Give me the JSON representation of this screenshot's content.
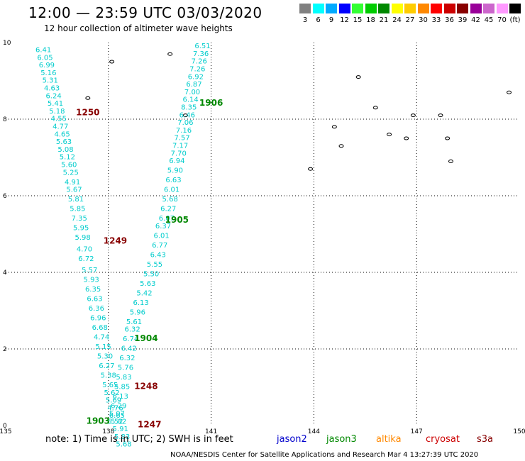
{
  "title": "12:00 — 23:59 UTC 03/03/2020",
  "subtitle": "12 hour collection of altimeter wave heights",
  "legend": {
    "unit": "(ft)",
    "bins": [
      {
        "label": "3",
        "color": "#808080"
      },
      {
        "label": "6",
        "color": "#00ffff"
      },
      {
        "label": "9",
        "color": "#00aaff"
      },
      {
        "label": "12",
        "color": "#0000ff"
      },
      {
        "label": "15",
        "color": "#33ff33"
      },
      {
        "label": "18",
        "color": "#00cc00"
      },
      {
        "label": "21",
        "color": "#008800"
      },
      {
        "label": "24",
        "color": "#ffff00"
      },
      {
        "label": "27",
        "color": "#ffcc00"
      },
      {
        "label": "30",
        "color": "#ff8800"
      },
      {
        "label": "33",
        "color": "#ff0000"
      },
      {
        "label": "36",
        "color": "#cc0000"
      },
      {
        "label": "39",
        "color": "#880000"
      },
      {
        "label": "42",
        "color": "#990099"
      },
      {
        "label": "45",
        "color": "#cc66cc"
      },
      {
        "label": "70",
        "color": "#ff99ff"
      },
      {
        "label": "(ft)",
        "color": "#000000"
      }
    ]
  },
  "map": {
    "lat_range": [
      0,
      10
    ],
    "lon_range": [
      135,
      150
    ],
    "lat_ticks": [
      "0",
      "2",
      "4",
      "6",
      "8",
      "10"
    ],
    "lon_ticks": [
      "135",
      "138",
      "141",
      "144",
      "147",
      "150"
    ],
    "track_color": "#00cccc",
    "track_label_color_cryosat": "#880000",
    "track_label_color_jason3": "#008800",
    "tracks": [
      {
        "name": "1250",
        "color": "#880000",
        "label_pos": [
          137.4,
          8.1
        ],
        "points": [
          {
            "lon": 136.1,
            "lat": 9.75,
            "v": "6.41"
          },
          {
            "lon": 136.15,
            "lat": 9.55,
            "v": "6.05"
          },
          {
            "lon": 136.2,
            "lat": 9.35,
            "v": "6.99"
          },
          {
            "lon": 136.25,
            "lat": 9.15,
            "v": "5.16"
          },
          {
            "lon": 136.3,
            "lat": 8.95,
            "v": "5.31"
          },
          {
            "lon": 136.35,
            "lat": 8.75,
            "v": "4.63"
          },
          {
            "lon": 136.4,
            "lat": 8.55,
            "v": "6.24"
          },
          {
            "lon": 136.45,
            "lat": 8.35,
            "v": "5.41"
          },
          {
            "lon": 136.5,
            "lat": 8.15,
            "v": "5.18"
          },
          {
            "lon": 136.55,
            "lat": 7.95,
            "v": "4.55"
          },
          {
            "lon": 136.6,
            "lat": 7.75,
            "v": "4.77"
          },
          {
            "lon": 136.65,
            "lat": 7.55,
            "v": "4.65"
          },
          {
            "lon": 136.7,
            "lat": 7.35,
            "v": "5.63"
          },
          {
            "lon": 136.75,
            "lat": 7.15,
            "v": "5.08"
          },
          {
            "lon": 136.8,
            "lat": 6.95,
            "v": "5.12"
          },
          {
            "lon": 136.85,
            "lat": 6.75,
            "v": "5.60"
          },
          {
            "lon": 136.9,
            "lat": 6.55,
            "v": "5.25"
          },
          {
            "lon": 136.95,
            "lat": 6.3,
            "v": "4.91"
          },
          {
            "lon": 137.0,
            "lat": 6.1,
            "v": "5.67"
          },
          {
            "lon": 137.05,
            "lat": 5.85,
            "v": "5.81"
          },
          {
            "lon": 137.1,
            "lat": 5.6,
            "v": "5.85"
          },
          {
            "lon": 137.15,
            "lat": 5.35,
            "v": "7.35"
          },
          {
            "lon": 137.2,
            "lat": 5.1,
            "v": "5.95"
          },
          {
            "lon": 137.25,
            "lat": 4.85,
            "v": "5.98"
          },
          {
            "lon": 137.3,
            "lat": 4.55,
            "v": "4.70"
          },
          {
            "lon": 137.35,
            "lat": 4.3,
            "v": "6.72"
          }
        ]
      },
      {
        "name": "1249",
        "color": "#880000",
        "label_pos": [
          138.2,
          4.75
        ],
        "points": [
          {
            "lon": 137.45,
            "lat": 4.0,
            "v": "5.57"
          },
          {
            "lon": 137.5,
            "lat": 3.75,
            "v": "5.93"
          },
          {
            "lon": 137.55,
            "lat": 3.5,
            "v": "6.35"
          },
          {
            "lon": 137.6,
            "lat": 3.25,
            "v": "6.63"
          },
          {
            "lon": 137.65,
            "lat": 3.0,
            "v": "6.36"
          },
          {
            "lon": 137.7,
            "lat": 2.75,
            "v": "6.96"
          },
          {
            "lon": 137.75,
            "lat": 2.5,
            "v": "6.68"
          },
          {
            "lon": 137.8,
            "lat": 2.25,
            "v": "4.74"
          },
          {
            "lon": 137.85,
            "lat": 2.0,
            "v": "5.15"
          },
          {
            "lon": 137.9,
            "lat": 1.75,
            "v": "5.30"
          },
          {
            "lon": 137.95,
            "lat": 1.5,
            "v": "6.27"
          },
          {
            "lon": 138.0,
            "lat": 1.25,
            "v": "5.38"
          }
        ]
      },
      {
        "name": "1248",
        "color": "#880000",
        "label_pos": [
          139.1,
          0.95
        ],
        "points": [
          {
            "lon": 138.05,
            "lat": 1.0,
            "v": "5.65"
          },
          {
            "lon": 138.1,
            "lat": 0.8,
            "v": "5.62"
          },
          {
            "lon": 138.15,
            "lat": 0.6,
            "v": "5.69"
          },
          {
            "lon": 138.2,
            "lat": 0.4,
            "v": "4.76"
          },
          {
            "lon": 138.25,
            "lat": 0.2,
            "v": "6.65"
          },
          {
            "lon": 138.3,
            "lat": 0.05,
            "v": "5.82"
          }
        ]
      },
      {
        "name": "1906",
        "color": "#008800",
        "label_pos": [
          141.0,
          8.35
        ],
        "points": [
          {
            "lon": 140.75,
            "lat": 9.85,
            "v": "6.51"
          },
          {
            "lon": 140.7,
            "lat": 9.65,
            "v": "7.36"
          },
          {
            "lon": 140.65,
            "lat": 9.45,
            "v": "7.26"
          },
          {
            "lon": 140.6,
            "lat": 9.25,
            "v": "7.26"
          },
          {
            "lon": 140.55,
            "lat": 9.05,
            "v": "6.92"
          },
          {
            "lon": 140.5,
            "lat": 8.85,
            "v": "6.87"
          },
          {
            "lon": 140.45,
            "lat": 8.65,
            "v": "7.00"
          },
          {
            "lon": 140.4,
            "lat": 8.45,
            "v": "6.14"
          },
          {
            "lon": 140.35,
            "lat": 8.25,
            "v": "8.35"
          },
          {
            "lon": 140.3,
            "lat": 8.05,
            "v": "6.46"
          },
          {
            "lon": 140.25,
            "lat": 7.85,
            "v": "7.06"
          },
          {
            "lon": 140.2,
            "lat": 7.65,
            "v": "7.16"
          },
          {
            "lon": 140.15,
            "lat": 7.45,
            "v": "7.57"
          },
          {
            "lon": 140.1,
            "lat": 7.25,
            "v": "7.17"
          },
          {
            "lon": 140.05,
            "lat": 7.05,
            "v": "7.70"
          },
          {
            "lon": 140.0,
            "lat": 6.85,
            "v": "6.94"
          },
          {
            "lon": 139.95,
            "lat": 6.6,
            "v": "5.90"
          },
          {
            "lon": 139.9,
            "lat": 6.35,
            "v": "6.63"
          },
          {
            "lon": 139.85,
            "lat": 6.1,
            "v": "6.01"
          },
          {
            "lon": 139.8,
            "lat": 5.85,
            "v": "5.68"
          },
          {
            "lon": 139.75,
            "lat": 5.6,
            "v": "6.27"
          },
          {
            "lon": 139.7,
            "lat": 5.35,
            "v": "6.07"
          }
        ]
      },
      {
        "name": "1905",
        "color": "#008800",
        "label_pos": [
          140.0,
          5.3
        ],
        "points": [
          {
            "lon": 139.6,
            "lat": 5.15,
            "v": "6.37"
          },
          {
            "lon": 139.55,
            "lat": 4.9,
            "v": "6.01"
          },
          {
            "lon": 139.5,
            "lat": 4.65,
            "v": "6.77"
          },
          {
            "lon": 139.45,
            "lat": 4.4,
            "v": "6.43"
          },
          {
            "lon": 139.35,
            "lat": 4.15,
            "v": "5.55"
          },
          {
            "lon": 139.25,
            "lat": 3.9,
            "v": "5.50"
          },
          {
            "lon": 139.15,
            "lat": 3.65,
            "v": "5.63"
          },
          {
            "lon": 139.05,
            "lat": 3.4,
            "v": "5.42"
          },
          {
            "lon": 138.95,
            "lat": 3.15,
            "v": "6.13"
          },
          {
            "lon": 138.85,
            "lat": 2.9,
            "v": "5.96"
          },
          {
            "lon": 138.75,
            "lat": 2.65,
            "v": "5.61"
          }
        ]
      },
      {
        "name": "1904",
        "color": "#008800",
        "label_pos": [
          139.1,
          2.2
        ],
        "points": [
          {
            "lon": 138.7,
            "lat": 2.45,
            "v": "6.32"
          },
          {
            "lon": 138.65,
            "lat": 2.2,
            "v": "6.74"
          },
          {
            "lon": 138.6,
            "lat": 1.95,
            "v": "6.42"
          },
          {
            "lon": 138.55,
            "lat": 1.7,
            "v": "6.32"
          },
          {
            "lon": 138.5,
            "lat": 1.45,
            "v": "5.76"
          },
          {
            "lon": 138.45,
            "lat": 1.2,
            "v": "5.83"
          },
          {
            "lon": 138.4,
            "lat": 0.95,
            "v": "5.85"
          },
          {
            "lon": 138.35,
            "lat": 0.7,
            "v": "6.13"
          },
          {
            "lon": 138.3,
            "lat": 0.45,
            "v": "6.29"
          }
        ]
      },
      {
        "name": "1903",
        "color": "#008800",
        "label_pos": [
          137.7,
          0.05
        ],
        "points": [
          {
            "lon": 138.25,
            "lat": 0.25,
            "v": "5.07"
          },
          {
            "lon": 138.2,
            "lat": 0.05,
            "v": "5.52"
          }
        ]
      },
      {
        "name": "1247",
        "color": "#880000",
        "label_pos": [
          139.2,
          -0.05
        ],
        "points": [
          {
            "lon": 138.35,
            "lat": -0.15,
            "v": "5.91"
          },
          {
            "lon": 138.4,
            "lat": -0.35,
            "v": "5.83"
          },
          {
            "lon": 138.45,
            "lat": -0.55,
            "v": "5.68"
          }
        ]
      }
    ]
  },
  "footnote": {
    "note": "note:  1) Time is in UTC;  2) SWH is in feet",
    "sat1": "jason2",
    "sat2": "jason3",
    "sat3": "altika",
    "sat4": "cryosat",
    "sat5": "s3a",
    "colors": {
      "jason2": "#0000cc",
      "jason3": "#008800",
      "altika": "#ff8800",
      "cryosat": "#cc0000",
      "s3a": "#880000"
    }
  },
  "credit": "NOAA/NESDIS Center for Satellite Applications and Research    Mar  4 13:27:39 UTC 2020"
}
